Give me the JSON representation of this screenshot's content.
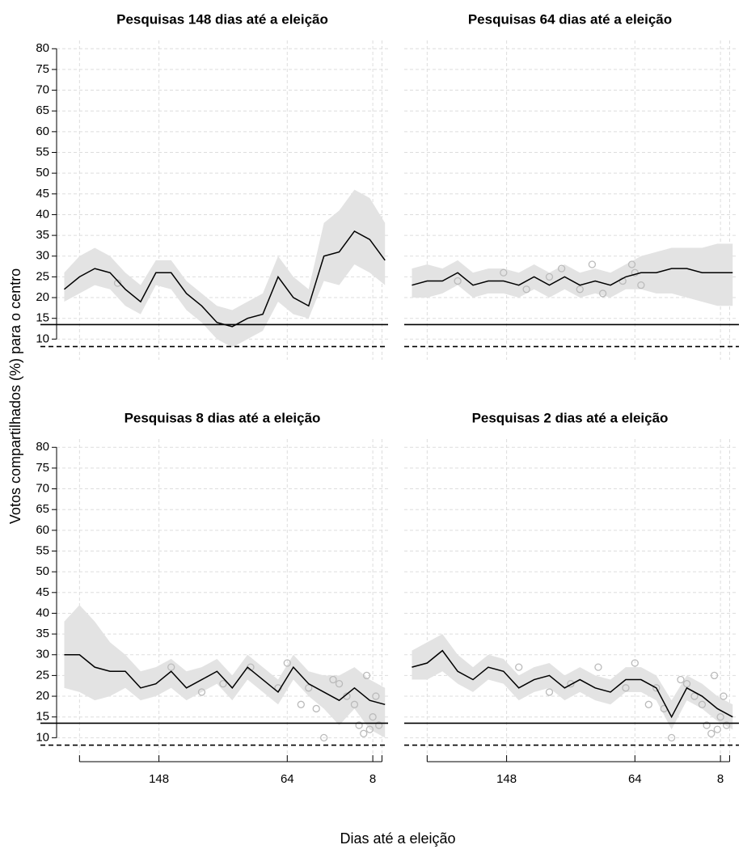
{
  "axis_labels": {
    "x": "Dias até a eleição",
    "y": "Votos compartilhados (%) para o centro"
  },
  "chart_data": [
    {
      "type": "line",
      "title": "Pesquisas 148 dias até a eleição",
      "x": [
        210,
        200,
        190,
        180,
        170,
        160,
        150,
        140,
        130,
        120,
        110,
        100,
        90,
        80,
        70,
        60,
        50,
        40,
        30,
        20,
        10,
        0
      ],
      "series": [
        {
          "color": "#000000",
          "band_color": "#e3e3e3",
          "values": [
            22,
            25,
            27,
            26,
            22,
            19,
            26,
            26,
            21,
            18,
            14,
            13,
            15,
            16,
            25,
            20,
            18,
            30,
            31,
            36,
            34,
            29
          ],
          "lower": [
            19,
            21,
            23,
            22,
            18,
            16,
            23,
            22,
            17,
            14,
            10,
            8,
            10,
            12,
            19,
            16,
            15,
            24,
            23,
            28,
            26,
            23
          ],
          "upper": [
            26,
            30,
            32,
            30,
            26,
            23,
            29,
            29,
            24,
            21,
            18,
            17,
            19,
            21,
            30,
            25,
            22,
            38,
            41,
            46,
            44,
            38
          ]
        }
      ],
      "points": {
        "color": "#bbbbbb",
        "x": [
          175
        ],
        "values": [
          23.5
        ]
      },
      "hlines": [
        {
          "value": 13.5,
          "style": "solid"
        },
        {
          "value": 8.2,
          "style": "dashed"
        }
      ],
      "xlim": [
        215,
        -2
      ],
      "ylim": [
        5,
        82
      ],
      "xticks": [
        {
          "value": 200,
          "label": null
        },
        148,
        64,
        8,
        {
          "value": 2,
          "label": null
        }
      ],
      "yticks": [
        10,
        15,
        20,
        25,
        30,
        35,
        40,
        45,
        50,
        55,
        60,
        65,
        70,
        75,
        80
      ],
      "grid": true,
      "show_xaxis": false,
      "show_yaxis": true
    },
    {
      "type": "line",
      "title": "Pesquisas 64 dias até a eleição",
      "x": [
        210,
        200,
        190,
        180,
        170,
        160,
        150,
        140,
        130,
        120,
        110,
        100,
        90,
        80,
        70,
        60,
        50,
        40,
        30,
        20,
        10,
        0
      ],
      "series": [
        {
          "color": "#000000",
          "band_color": "#e3e3e3",
          "values": [
            23,
            24,
            24,
            26,
            23,
            24,
            24,
            23,
            25,
            23,
            25,
            23,
            24,
            23,
            25,
            26,
            26,
            27,
            27,
            26,
            26,
            26
          ],
          "lower": [
            20,
            20,
            21,
            23,
            20,
            21,
            21,
            20,
            22,
            20,
            22,
            20,
            21,
            20,
            22,
            22,
            21,
            21,
            20,
            19,
            18,
            18
          ],
          "upper": [
            27,
            28,
            27,
            29,
            26,
            27,
            27,
            26,
            28,
            26,
            28,
            26,
            27,
            26,
            28,
            30,
            31,
            32,
            32,
            32,
            33,
            33
          ]
        }
      ],
      "points": {
        "color": "#bbbbbb",
        "x": [
          180,
          150,
          135,
          120,
          112,
          100,
          92,
          85,
          72,
          66,
          64,
          60
        ],
        "values": [
          24,
          26,
          22,
          25,
          27,
          22,
          28,
          21,
          24,
          28,
          26,
          23
        ]
      },
      "hlines": [
        {
          "value": 13.5,
          "style": "solid"
        },
        {
          "value": 8.2,
          "style": "dashed"
        }
      ],
      "xlim": [
        215,
        -2
      ],
      "ylim": [
        5,
        82
      ],
      "xticks": [
        {
          "value": 200,
          "label": null
        },
        148,
        64,
        8,
        {
          "value": 2,
          "label": null
        }
      ],
      "yticks": [
        10,
        15,
        20,
        25,
        30,
        35,
        40,
        45,
        50,
        55,
        60,
        65,
        70,
        75,
        80
      ],
      "grid": true,
      "show_xaxis": false,
      "show_yaxis": false
    },
    {
      "type": "line",
      "title": "Pesquisas 8 dias até a eleição",
      "x": [
        210,
        200,
        190,
        180,
        170,
        160,
        150,
        140,
        130,
        120,
        110,
        100,
        90,
        80,
        70,
        60,
        50,
        40,
        30,
        20,
        10,
        0
      ],
      "series": [
        {
          "color": "#000000",
          "band_color": "#e3e3e3",
          "values": [
            30,
            30,
            27,
            26,
            26,
            22,
            23,
            26,
            22,
            24,
            26,
            22,
            27,
            24,
            21,
            27,
            23,
            21,
            19,
            22,
            19,
            18
          ],
          "lower": [
            22,
            21,
            19,
            20,
            22,
            19,
            20,
            22,
            19,
            21,
            23,
            19,
            24,
            21,
            18,
            24,
            20,
            17,
            13,
            17,
            12,
            10
          ],
          "upper": [
            38,
            42,
            38,
            33,
            30,
            26,
            27,
            29,
            26,
            27,
            29,
            25,
            30,
            27,
            24,
            30,
            26,
            25,
            25,
            27,
            24,
            22
          ]
        }
      ],
      "points": {
        "color": "#bbbbbb",
        "x": [
          140,
          120,
          106,
          88,
          70,
          64,
          55,
          50,
          45,
          40,
          34,
          30,
          25,
          20,
          17,
          14,
          12,
          10,
          8,
          6,
          4
        ],
        "values": [
          27,
          21,
          23,
          27,
          22,
          28,
          18,
          22,
          17,
          10,
          24,
          23,
          20,
          18,
          13,
          11,
          25,
          12,
          15,
          20,
          13
        ]
      },
      "hlines": [
        {
          "value": 13.5,
          "style": "solid"
        },
        {
          "value": 8.2,
          "style": "dashed"
        }
      ],
      "xlim": [
        215,
        -2
      ],
      "ylim": [
        5,
        82
      ],
      "xticks": [
        {
          "value": 200,
          "label": null
        },
        148,
        64,
        8,
        {
          "value": 2,
          "label": null
        }
      ],
      "yticks": [
        10,
        15,
        20,
        25,
        30,
        35,
        40,
        45,
        50,
        55,
        60,
        65,
        70,
        75,
        80
      ],
      "grid": true,
      "show_xaxis": true,
      "show_yaxis": true
    },
    {
      "type": "line",
      "title": "Pesquisas 2 dias até a eleição",
      "x": [
        210,
        200,
        190,
        180,
        170,
        160,
        150,
        140,
        130,
        120,
        110,
        100,
        90,
        80,
        70,
        60,
        50,
        40,
        30,
        20,
        10,
        0
      ],
      "series": [
        {
          "color": "#000000",
          "band_color": "#e3e3e3",
          "values": [
            27,
            28,
            31,
            26,
            24,
            27,
            26,
            22,
            24,
            25,
            22,
            24,
            22,
            21,
            24,
            24,
            22,
            15,
            22,
            20,
            17,
            15
          ],
          "lower": [
            24,
            24,
            26,
            23,
            21,
            24,
            23,
            19,
            21,
            22,
            19,
            21,
            19,
            18,
            21,
            21,
            19,
            12,
            19,
            17,
            14,
            12
          ],
          "upper": [
            31,
            33,
            35,
            30,
            27,
            30,
            29,
            25,
            27,
            28,
            25,
            27,
            25,
            24,
            27,
            27,
            25,
            19,
            25,
            23,
            20,
            18
          ]
        }
      ],
      "points": {
        "color": "#bbbbbb",
        "x": [
          140,
          120,
          106,
          88,
          70,
          64,
          55,
          50,
          45,
          40,
          34,
          30,
          25,
          20,
          17,
          14,
          12,
          10,
          8,
          6,
          4
        ],
        "values": [
          27,
          21,
          23,
          27,
          22,
          28,
          18,
          22,
          17,
          10,
          24,
          23,
          20,
          18,
          13,
          11,
          25,
          12,
          15,
          20,
          13
        ]
      },
      "hlines": [
        {
          "value": 13.5,
          "style": "solid"
        },
        {
          "value": 8.2,
          "style": "dashed"
        }
      ],
      "xlim": [
        215,
        -2
      ],
      "ylim": [
        5,
        82
      ],
      "xticks": [
        {
          "value": 200,
          "label": null
        },
        148,
        64,
        8,
        {
          "value": 2,
          "label": null
        }
      ],
      "yticks": [
        10,
        15,
        20,
        25,
        30,
        35,
        40,
        45,
        50,
        55,
        60,
        65,
        70,
        75,
        80
      ],
      "grid": true,
      "show_xaxis": true,
      "show_yaxis": false
    }
  ]
}
